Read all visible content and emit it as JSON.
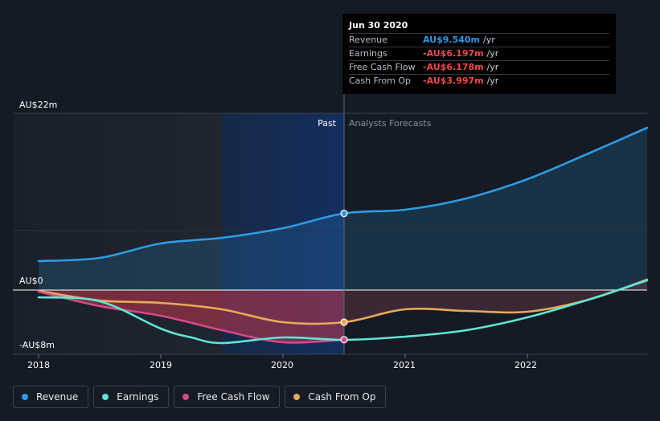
{
  "tooltip": {
    "date": "Jun 30 2020",
    "rows": [
      {
        "label": "Revenue",
        "value": "AU$9.540m",
        "unit": "/yr",
        "color": "#2f9be6"
      },
      {
        "label": "Earnings",
        "value": "-AU$6.197m",
        "unit": "/yr",
        "color": "#f04a4a"
      },
      {
        "label": "Free Cash Flow",
        "value": "-AU$6.178m",
        "unit": "/yr",
        "color": "#f04a4a"
      },
      {
        "label": "Cash From Op",
        "value": "-AU$3.997m",
        "unit": "/yr",
        "color": "#f04a4a"
      }
    ]
  },
  "legend": [
    {
      "label": "Revenue",
      "color": "#2f9be6"
    },
    {
      "label": "Earnings",
      "color": "#5ee6d4"
    },
    {
      "label": "Free Cash Flow",
      "color": "#d6488a"
    },
    {
      "label": "Cash From Op",
      "color": "#e8a95a"
    }
  ],
  "chart_data": {
    "type": "line",
    "ylabels": {
      "top": "AU$22m",
      "zero": "AU$0",
      "bottom": "-AU$8m"
    },
    "ylim": [
      -8,
      22
    ],
    "xlim": [
      2018,
      2022.98
    ],
    "xticks": [
      "2018",
      "2019",
      "2020",
      "2021",
      "2022"
    ],
    "divider_x": 2020.5,
    "past_label": "Past",
    "forecast_label": "Analysts Forecasts",
    "series": [
      {
        "name": "Revenue",
        "color": "#2f9be6",
        "x": [
          2018.0,
          2018.5,
          2019.0,
          2019.5,
          2020.0,
          2020.5,
          2021.0,
          2021.5,
          2022.0,
          2022.5,
          2022.98
        ],
        "y": [
          3.6,
          4.0,
          5.8,
          6.5,
          7.7,
          9.54,
          10.0,
          11.4,
          13.8,
          17.0,
          20.2
        ]
      },
      {
        "name": "Earnings",
        "color": "#5ee6d4",
        "x": [
          2018.0,
          2018.5,
          2019.0,
          2019.25,
          2019.5,
          2020.0,
          2020.5,
          2021.0,
          2021.5,
          2022.0,
          2022.5,
          2022.98
        ],
        "y": [
          -0.9,
          -1.4,
          -4.8,
          -5.9,
          -6.6,
          -5.9,
          -6.2,
          -5.8,
          -5.0,
          -3.4,
          -1.2,
          1.2
        ]
      },
      {
        "name": "Free Cash Flow",
        "color": "#d6488a",
        "x": [
          2018.0,
          2018.5,
          2019.0,
          2019.5,
          2020.0,
          2020.5
        ],
        "y": [
          -0.2,
          -2.0,
          -3.2,
          -5.0,
          -6.5,
          -6.18
        ]
      },
      {
        "name": "Cash From Op",
        "color": "#e8a95a",
        "x": [
          2018.0,
          2018.5,
          2019.0,
          2019.5,
          2020.0,
          2020.5,
          2021.0,
          2021.5,
          2022.0,
          2022.5,
          2022.98
        ],
        "y": [
          -0.1,
          -1.3,
          -1.6,
          -2.4,
          -4.0,
          -4.0,
          -2.4,
          -2.6,
          -2.7,
          -1.2,
          1.3
        ]
      }
    ],
    "markers": [
      {
        "series": "Revenue",
        "x": 2020.5,
        "y": 9.54
      },
      {
        "series": "Free Cash Flow",
        "x": 2020.5,
        "y": -6.18
      },
      {
        "series": "Cash From Op",
        "x": 2020.5,
        "y": -4.0
      }
    ]
  }
}
